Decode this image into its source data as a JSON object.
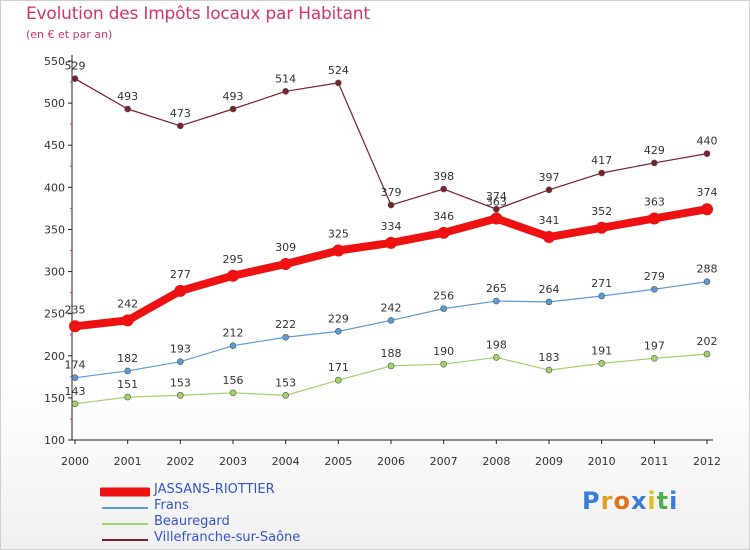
{
  "title": "Evolution des Impôts locaux par Habitant",
  "subtitle": "(en € et par an)",
  "logo": {
    "letters": [
      "P",
      "r",
      "o",
      "x",
      "i",
      "t",
      "i"
    ],
    "colors": [
      "#3a7bd5",
      "#e0a020",
      "#e07020",
      "#3a7bd5",
      "#e0c020",
      "#50b050",
      "#3a7bd5"
    ]
  },
  "chart_data": {
    "type": "line",
    "categories": [
      "2000",
      "2001",
      "2002",
      "2003",
      "2004",
      "2005",
      "2006",
      "2007",
      "2008",
      "2009",
      "2010",
      "2011",
      "2012"
    ],
    "ylim": [
      100,
      550
    ],
    "yticks": [
      "100",
      "150",
      "200",
      "250",
      "300",
      "350",
      "400",
      "450",
      "500",
      "550"
    ],
    "grid": false,
    "legend_position": "bottom-left",
    "series": [
      {
        "name": "Villefranche-sur-Saône",
        "color": "#7a1f2b",
        "values": [
          529,
          493,
          473,
          493,
          514,
          524,
          379,
          398,
          374,
          397,
          417,
          429,
          440
        ],
        "labels": [
          "529",
          "493",
          "473",
          "493",
          "514",
          "524",
          "379",
          "398",
          "374",
          "397",
          "417",
          "429",
          "440"
        ]
      },
      {
        "name": "Frans",
        "color": "#5b9bd5",
        "values": [
          174,
          182,
          193,
          212,
          222,
          229,
          242,
          256,
          265,
          264,
          271,
          279,
          288
        ],
        "labels": [
          "174",
          "182",
          "193",
          "212",
          "222",
          "229",
          "242",
          "256",
          "265",
          "264",
          "271",
          "279",
          "288"
        ]
      },
      {
        "name": "Beauregard",
        "color": "#9ed46a",
        "values": [
          143,
          151,
          153,
          156,
          153,
          171,
          188,
          190,
          198,
          183,
          191,
          197,
          202
        ],
        "labels": [
          "143",
          "151",
          "153",
          "156",
          "153",
          "171",
          "188",
          "190",
          "198",
          "183",
          "191",
          "197",
          "202"
        ]
      },
      {
        "name": "JASSANS-RIOTTIER",
        "color": "#ee1111",
        "values": [
          235,
          242,
          277,
          295,
          309,
          325,
          334,
          346,
          363,
          341,
          352,
          363,
          374
        ],
        "labels": [
          "235",
          "242",
          "277",
          "295",
          "309",
          "325",
          "334",
          "346",
          "363",
          "341",
          "352",
          "363",
          "374"
        ]
      }
    ]
  },
  "legend": {
    "items": [
      {
        "label": "JASSANS-RIOTTIER",
        "color": "#ee1111",
        "thick": true
      },
      {
        "label": "Frans",
        "color": "#5b9bd5",
        "thick": false
      },
      {
        "label": "Beauregard",
        "color": "#9ed46a",
        "thick": false
      },
      {
        "label": "Villefranche-sur-Saône",
        "color": "#7a1f2b",
        "thick": false
      }
    ]
  }
}
